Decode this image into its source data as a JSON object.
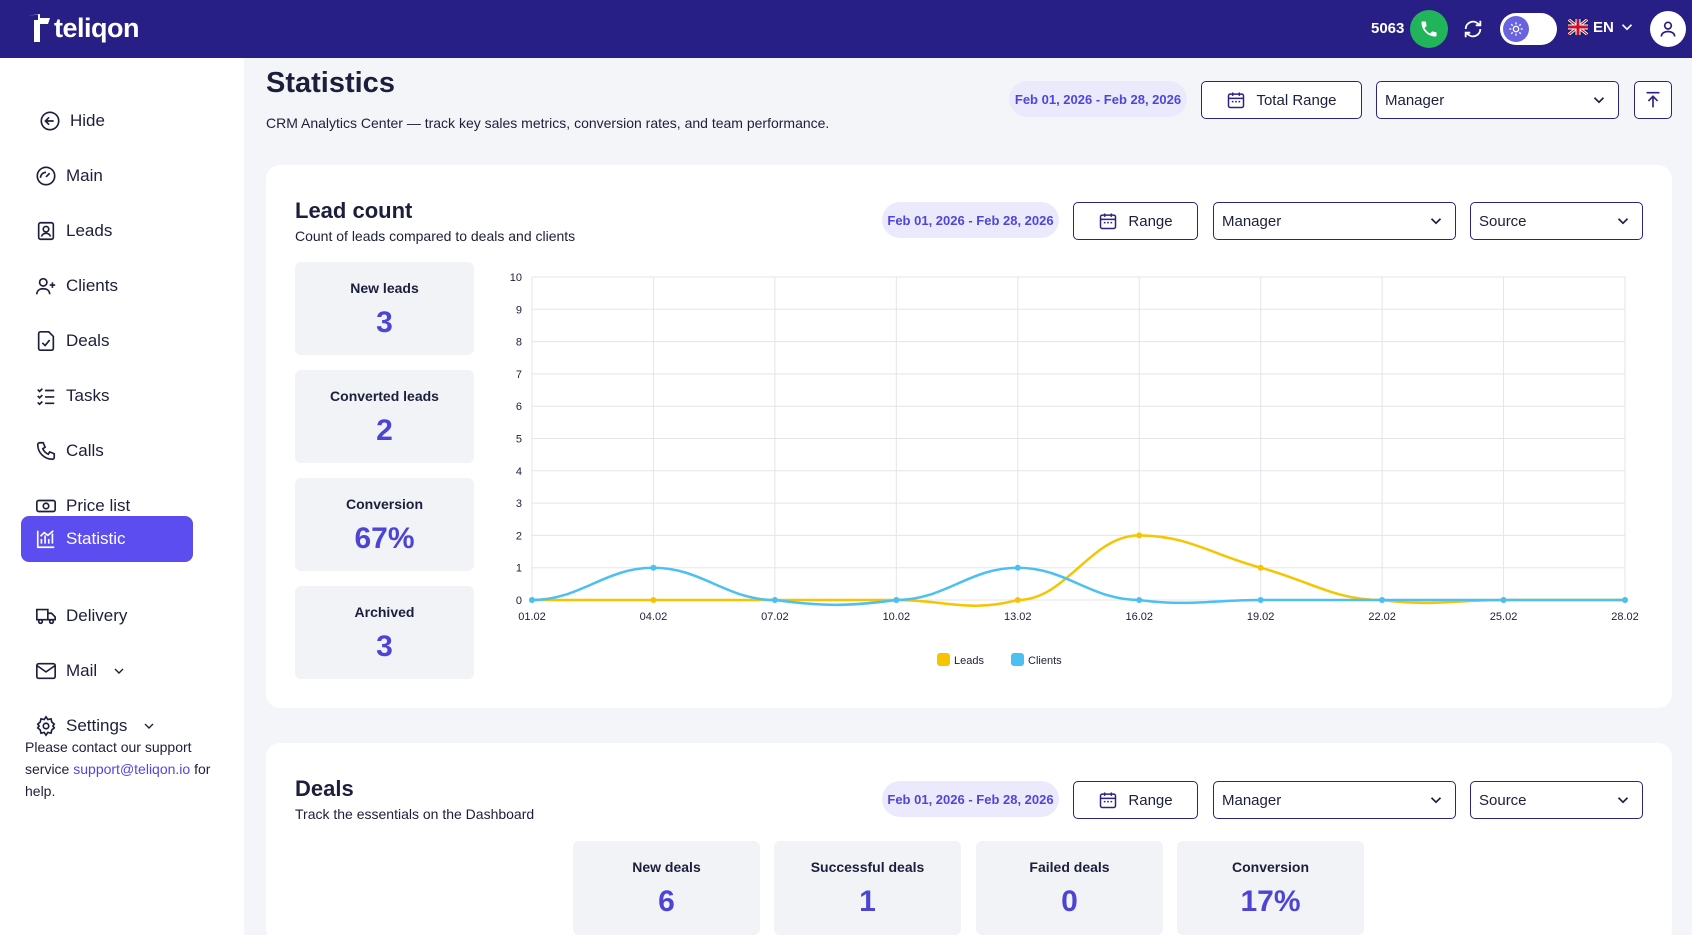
{
  "app": {
    "brand": "teliqon"
  },
  "topbar": {
    "extension": "5063",
    "language": "EN"
  },
  "sidebar": {
    "items": [
      {
        "label": "Hide",
        "icon": "arrow-left-circle-icon"
      },
      {
        "label": "Main",
        "icon": "gauge-icon"
      },
      {
        "label": "Leads",
        "icon": "contact-card-icon"
      },
      {
        "label": "Clients",
        "icon": "user-plus-icon"
      },
      {
        "label": "Deals",
        "icon": "document-check-icon"
      },
      {
        "label": "Tasks",
        "icon": "checklist-icon"
      },
      {
        "label": "Calls",
        "icon": "phone-icon"
      },
      {
        "label": "Price list",
        "icon": "money-icon"
      },
      {
        "label": "Statistic",
        "icon": "chart-icon"
      },
      {
        "label": "Delivery",
        "icon": "truck-icon"
      },
      {
        "label": "Mail",
        "icon": "mail-icon"
      },
      {
        "label": "Settings",
        "icon": "gear-icon"
      }
    ],
    "support_prefix": "Please contact our support service",
    "support_email": "support@teliqon.io",
    "support_suffix": "for help."
  },
  "header": {
    "title": "Statistics",
    "subtitle": "CRM Analytics Center — track key sales metrics, conversion rates, and team performance.",
    "date_range": "Feb 01, 2026 - Feb 28, 2026",
    "range_button": "Total Range",
    "manager_select": "Manager"
  },
  "lead_card": {
    "title": "Lead count",
    "subtitle": "Count of leads compared to deals and clients",
    "date_range": "Feb 01, 2026 - Feb 28, 2026",
    "range_button": "Range",
    "manager_select": "Manager",
    "source_select": "Source",
    "stats": [
      {
        "label": "New leads",
        "value": "3"
      },
      {
        "label": "Converted leads",
        "value": "2"
      },
      {
        "label": "Conversion",
        "value": "67%"
      },
      {
        "label": "Archived",
        "value": "3"
      }
    ]
  },
  "deals_card": {
    "title": "Deals",
    "subtitle": "Track the essentials on the Dashboard",
    "date_range": "Feb 01, 2026 - Feb 28, 2026",
    "range_button": "Range",
    "manager_select": "Manager",
    "source_select": "Source",
    "stats": [
      {
        "label": "New deals",
        "value": "6"
      },
      {
        "label": "Successful deals",
        "value": "1"
      },
      {
        "label": "Failed deals",
        "value": "0"
      },
      {
        "label": "Conversion",
        "value": "17%"
      }
    ]
  },
  "chart_data": {
    "type": "line",
    "title": "",
    "xlabel": "",
    "ylabel": "",
    "x": [
      "01.02",
      "04.02",
      "07.02",
      "10.02",
      "13.02",
      "16.02",
      "19.02",
      "22.02",
      "25.02",
      "28.02"
    ],
    "ylim": [
      0,
      10
    ],
    "yticks": [
      0,
      1,
      2,
      3,
      4,
      5,
      6,
      7,
      8,
      9,
      10
    ],
    "grid": true,
    "legend": "bottom",
    "series": [
      {
        "name": "Leads",
        "color": "#f7c500",
        "values": [
          0,
          0,
          0,
          0,
          0,
          2,
          1,
          0,
          0,
          0
        ]
      },
      {
        "name": "Clients",
        "color": "#4cc0f2",
        "values": [
          0,
          1,
          0,
          0,
          1,
          0,
          0,
          0,
          0,
          0
        ]
      }
    ]
  }
}
